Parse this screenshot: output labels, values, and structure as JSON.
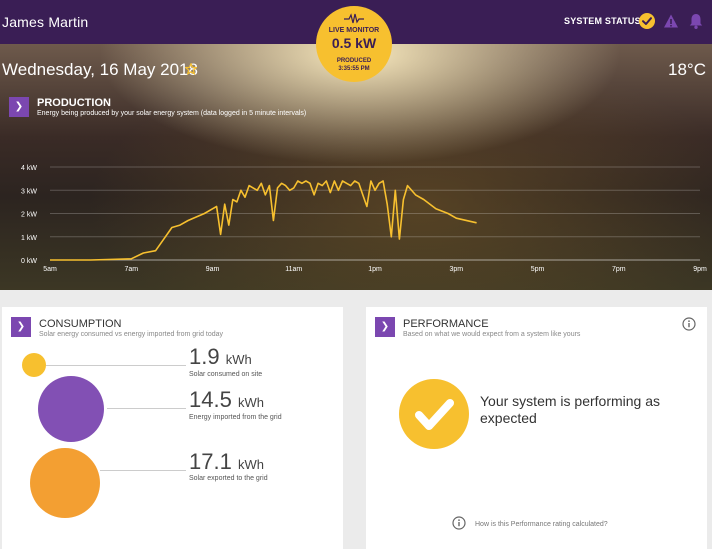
{
  "header": {
    "user_name": "James Martin",
    "system_status_label": "SYSTEM STATUS",
    "icons": [
      "check-circle-icon",
      "warning-icon",
      "bell-icon"
    ],
    "accent_color": "#3a1e55"
  },
  "live_monitor": {
    "label": "LIVE MONITOR",
    "value": "0.5 kW",
    "produced_label": "PRODUCED",
    "produced_time": "3:35:55 PM",
    "color": "#f7c02f"
  },
  "hero": {
    "date": "Wednesday, 16 May 2018",
    "temperature": "18°C"
  },
  "production": {
    "title": "PRODUCTION",
    "subtitle": "Energy being produced by your solar energy system (data logged in 5 minute intervals)"
  },
  "chart_data": {
    "type": "line",
    "y_unit": "kW",
    "ylim": [
      0,
      4
    ],
    "y_ticks": [
      "0 kW",
      "1 kW",
      "2 kW",
      "3 kW",
      "4 kW"
    ],
    "x_ticks": [
      "5am",
      "7am",
      "9am",
      "11am",
      "1pm",
      "3pm",
      "5pm",
      "7pm",
      "9pm"
    ],
    "xlim": [
      5,
      21
    ],
    "grid": true,
    "line_color": "#f7c02f",
    "series": [
      {
        "x": [
          5.0,
          6.0,
          7.0,
          7.3,
          7.6,
          7.8,
          8.0,
          8.2,
          8.4,
          8.6,
          8.8,
          9.0,
          9.1,
          9.2,
          9.3,
          9.4,
          9.5,
          9.6,
          9.7,
          9.8,
          9.9,
          10.0,
          10.1,
          10.2,
          10.3,
          10.4,
          10.5,
          10.6,
          10.7,
          10.8,
          10.9,
          11.0,
          11.1,
          11.2,
          11.3,
          11.4,
          11.5,
          11.6,
          11.7,
          11.8,
          11.9,
          12.0,
          12.1,
          12.2,
          12.3,
          12.4,
          12.5,
          12.6,
          12.7,
          12.8,
          12.9,
          13.0,
          13.1,
          13.2,
          13.3,
          13.4,
          13.5,
          13.6,
          13.7,
          13.8,
          14.0,
          14.2,
          14.5,
          14.8,
          15.0,
          15.5
        ],
        "y": [
          0.0,
          0.0,
          0.05,
          0.3,
          0.4,
          0.9,
          1.4,
          1.5,
          1.7,
          1.85,
          2.0,
          2.2,
          2.3,
          1.1,
          2.4,
          1.5,
          2.6,
          2.5,
          3.0,
          2.7,
          3.2,
          3.1,
          3.0,
          3.3,
          2.8,
          3.2,
          1.7,
          3.1,
          3.3,
          3.2,
          3.0,
          3.1,
          3.4,
          3.3,
          3.4,
          3.3,
          2.8,
          3.3,
          3.2,
          3.4,
          2.9,
          3.4,
          3.0,
          3.4,
          3.3,
          3.2,
          3.4,
          3.3,
          2.8,
          2.3,
          3.4,
          3.0,
          3.3,
          3.4,
          2.4,
          1.0,
          3.0,
          0.9,
          2.6,
          3.2,
          2.8,
          2.6,
          2.2,
          2.0,
          1.8,
          1.6
        ]
      }
    ]
  },
  "consumption": {
    "title": "CONSUMPTION",
    "subtitle": "Solar energy consumed vs energy imported from grid today",
    "items": [
      {
        "value": "1.9",
        "unit": "kWh",
        "label": "Solar consumed on site",
        "color": "#f7c02f"
      },
      {
        "value": "14.5",
        "unit": "kWh",
        "label": "Energy imported from the grid",
        "color": "#7b47b0"
      },
      {
        "value": "17.1",
        "unit": "kWh",
        "label": "Solar exported to the grid",
        "color": "#f29a27"
      }
    ]
  },
  "performance": {
    "title": "PERFORMANCE",
    "subtitle": "Based on what we would expect from a system like yours",
    "message": "Your system is performing as expected",
    "footer_link": "How is this Performance rating calculated?",
    "icon": "info-icon"
  }
}
